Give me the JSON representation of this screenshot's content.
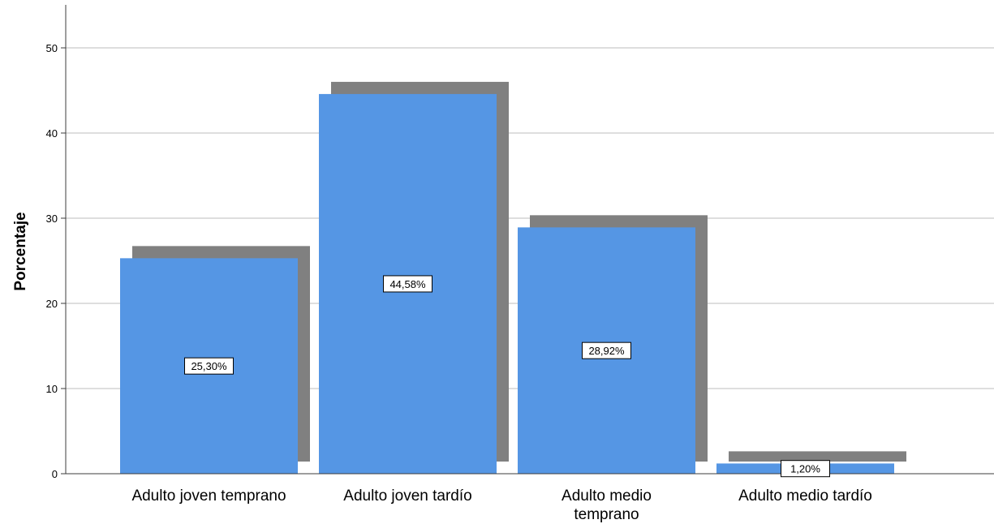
{
  "chart_data": {
    "type": "bar",
    "categories": [
      [
        "Adulto joven temprano"
      ],
      [
        "Adulto joven tardío"
      ],
      [
        "Adulto medio",
        "temprano"
      ],
      [
        "Adulto medio tardío"
      ]
    ],
    "values": [
      25.3,
      44.58,
      28.92,
      1.2
    ],
    "data_labels": [
      "25,30%",
      "44,58%",
      "28,92%",
      "1,20%"
    ],
    "ylabel": "Porcentaje",
    "xlabel": "",
    "ylim": [
      0,
      55
    ],
    "yticks": [
      0,
      10,
      20,
      30,
      40,
      50
    ],
    "grid": true,
    "colors": {
      "bar": "#5596e4",
      "shadow": "#808080",
      "grid": "#d4d4d4",
      "axis": "#3c3c3c"
    }
  }
}
